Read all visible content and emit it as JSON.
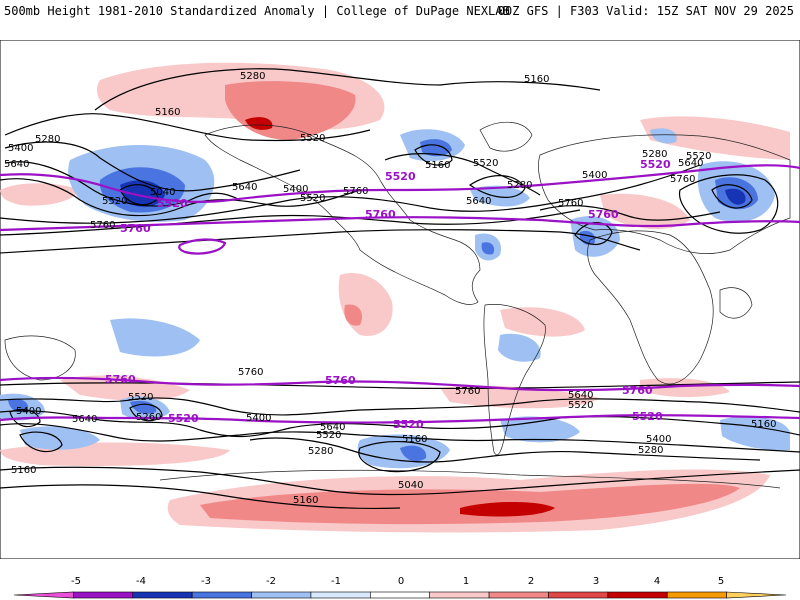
{
  "header": {
    "left_title": "500mb Height 1981-2010 Standardized Anomaly | College of DuPage NEXLAB",
    "right_title": "00Z GFS | F303 Valid: 15Z SAT NOV 29 2025"
  },
  "colorbar": {
    "ticks": [
      "-5",
      "-4",
      "-3",
      "-2",
      "-1",
      "0",
      "1",
      "2",
      "3",
      "4",
      "5"
    ],
    "colors": [
      "#ea4fd8",
      "#9b11c6",
      "#1634b4",
      "#4a74e0",
      "#9fc0f2",
      "#d8e8fa",
      "#ffffff",
      "#f9c8c8",
      "#f08888",
      "#e04848",
      "#c40000",
      "#f59a00",
      "#ffd060"
    ]
  },
  "contour_labels": {
    "black": [
      "5280",
      "5160",
      "5160",
      "5280",
      "5400",
      "5640",
      "5040",
      "5520",
      "5760",
      "5520",
      "5640",
      "5400",
      "5760",
      "5520",
      "5160",
      "5280",
      "5520",
      "5640",
      "5760",
      "5400",
      "5280",
      "5520",
      "5640",
      "5760",
      "5400",
      "5640",
      "5520",
      "5260",
      "5400",
      "5760",
      "5640",
      "5520",
      "5160",
      "5280",
      "5040",
      "5160",
      "5760",
      "5640",
      "5520",
      "5400",
      "5280",
      "5160",
      "5160"
    ],
    "purple": [
      "5520",
      "5760",
      "5520",
      "5760",
      "5520",
      "5760",
      "5760",
      "5760",
      "5760",
      "5520",
      "5520",
      "5520"
    ]
  },
  "colors": {
    "contour_black": "#000000",
    "contour_purple": "#9b11c6",
    "coast": "#222222"
  }
}
